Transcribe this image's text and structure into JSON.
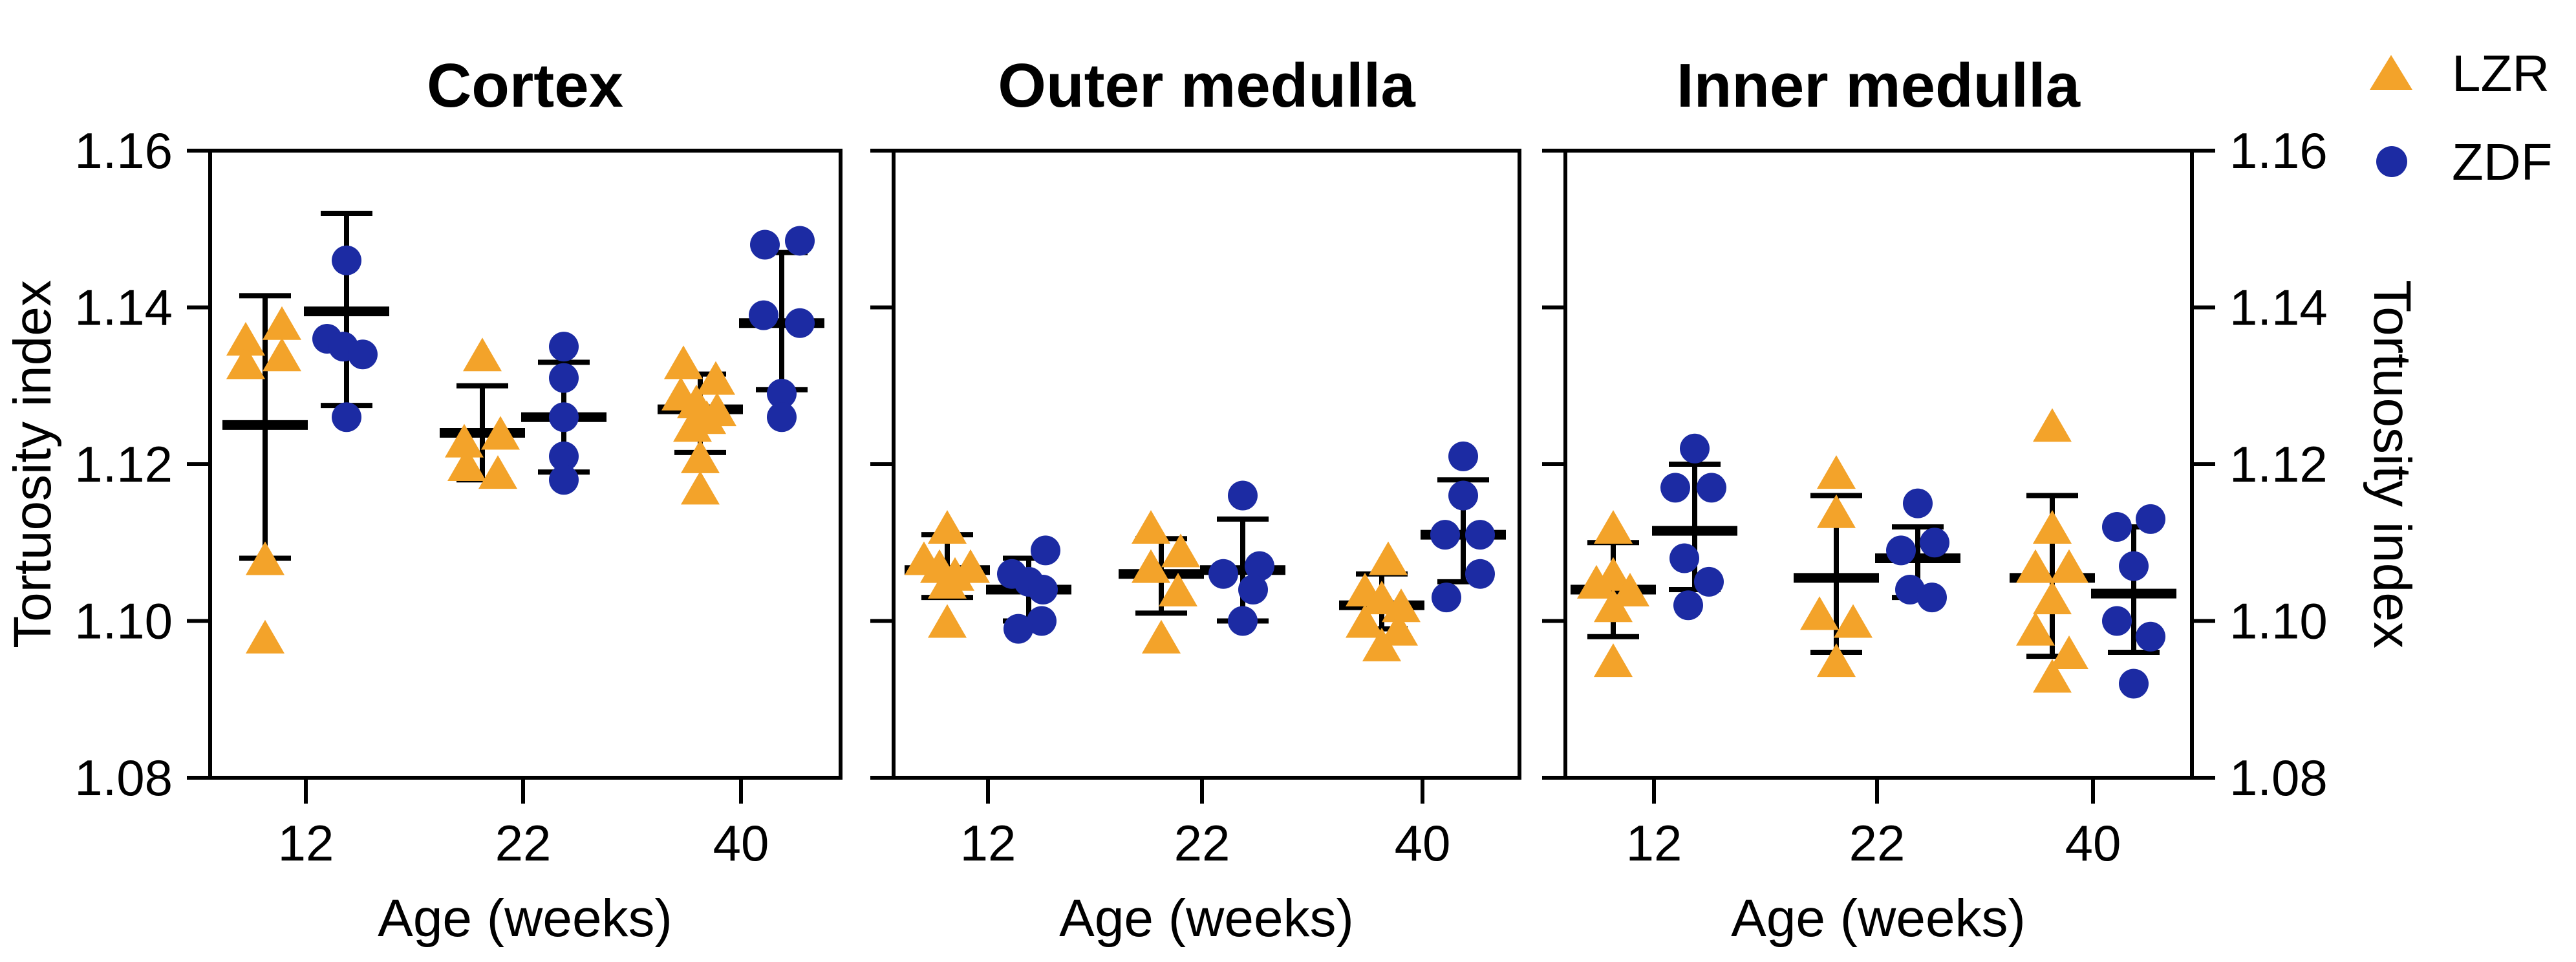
{
  "legend": {
    "items": [
      {
        "label": "LZR",
        "marker": "triangle",
        "color": "#F3A32A"
      },
      {
        "label": "ZDF",
        "marker": "circle",
        "color": "#1C2BA3"
      }
    ]
  },
  "y_axis": {
    "label": "Tortuosity index",
    "min": 1.08,
    "max": 1.16,
    "tick_labels": [
      "1.16",
      "1.14",
      "1.12",
      "1.10",
      "1.08"
    ],
    "tick_values": [
      1.16,
      1.14,
      1.12,
      1.1,
      1.08
    ]
  },
  "x_axis": {
    "label": "Age (weeks)",
    "categories": [
      "12",
      "22",
      "40"
    ]
  },
  "chart_data": {
    "type": "scatter",
    "ylim": [
      1.08,
      1.16
    ],
    "grid": false,
    "legend_position": "top-right",
    "series_colors": {
      "LZR": "#F3A32A",
      "ZDF": "#1C2BA3"
    },
    "panels": [
      {
        "title": "Cortex",
        "xlabel": "Age (weeks)",
        "categories": [
          "12",
          "22",
          "40"
        ],
        "groups": [
          {
            "age": "12",
            "series": [
              {
                "name": "LZR",
                "mean": 1.125,
                "sd_low": 1.108,
                "sd_high": 1.1415,
                "points": [
                  {
                    "v": 1.138,
                    "j": 26
                  },
                  {
                    "v": 1.136,
                    "j": -30
                  },
                  {
                    "v": 1.134,
                    "j": 26
                  },
                  {
                    "v": 1.133,
                    "j": -30
                  },
                  {
                    "v": 1.108,
                    "j": 0
                  },
                  {
                    "v": 1.098,
                    "j": 0
                  }
                ]
              },
              {
                "name": "ZDF",
                "mean": 1.1395,
                "sd_low": 1.1275,
                "sd_high": 1.152,
                "points": [
                  {
                    "v": 1.146,
                    "j": 0
                  },
                  {
                    "v": 1.136,
                    "j": -30
                  },
                  {
                    "v": 1.135,
                    "j": -5
                  },
                  {
                    "v": 1.134,
                    "j": 25
                  },
                  {
                    "v": 1.126,
                    "j": 0
                  }
                ]
              }
            ]
          },
          {
            "age": "22",
            "series": [
              {
                "name": "LZR",
                "mean": 1.124,
                "sd_low": 1.118,
                "sd_high": 1.13,
                "points": [
                  {
                    "v": 1.134,
                    "j": 0
                  },
                  {
                    "v": 1.124,
                    "j": 28
                  },
                  {
                    "v": 1.123,
                    "j": -28
                  },
                  {
                    "v": 1.12,
                    "j": -24
                  },
                  {
                    "v": 1.119,
                    "j": 24
                  }
                ]
              },
              {
                "name": "ZDF",
                "mean": 1.126,
                "sd_low": 1.119,
                "sd_high": 1.133,
                "points": [
                  {
                    "v": 1.135,
                    "j": 0
                  },
                  {
                    "v": 1.131,
                    "j": 0
                  },
                  {
                    "v": 1.126,
                    "j": 0
                  },
                  {
                    "v": 1.121,
                    "j": 0
                  },
                  {
                    "v": 1.118,
                    "j": 0
                  }
                ]
              }
            ]
          },
          {
            "age": "40",
            "series": [
              {
                "name": "LZR",
                "mean": 1.127,
                "sd_low": 1.1215,
                "sd_high": 1.1315,
                "points": [
                  {
                    "v": 1.133,
                    "j": -26
                  },
                  {
                    "v": 1.131,
                    "j": 24
                  },
                  {
                    "v": 1.129,
                    "j": -30
                  },
                  {
                    "v": 1.128,
                    "j": -6
                  },
                  {
                    "v": 1.127,
                    "j": 26
                  },
                  {
                    "v": 1.126,
                    "j": 10
                  },
                  {
                    "v": 1.125,
                    "j": -12
                  },
                  {
                    "v": 1.121,
                    "j": 0
                  },
                  {
                    "v": 1.117,
                    "j": 0
                  }
                ]
              },
              {
                "name": "ZDF",
                "mean": 1.138,
                "sd_low": 1.1295,
                "sd_high": 1.147,
                "points": [
                  {
                    "v": 1.148,
                    "j": -26
                  },
                  {
                    "v": 1.1485,
                    "j": 28
                  },
                  {
                    "v": 1.139,
                    "j": -28
                  },
                  {
                    "v": 1.138,
                    "j": 28
                  },
                  {
                    "v": 1.129,
                    "j": 0
                  },
                  {
                    "v": 1.126,
                    "j": 0
                  }
                ]
              }
            ]
          }
        ]
      },
      {
        "title": "Outer medulla",
        "xlabel": "Age (weeks)",
        "categories": [
          "12",
          "22",
          "40"
        ],
        "groups": [
          {
            "age": "12",
            "series": [
              {
                "name": "LZR",
                "mean": 1.1065,
                "sd_low": 1.103,
                "sd_high": 1.111,
                "points": [
                  {
                    "v": 1.112,
                    "j": 0
                  },
                  {
                    "v": 1.108,
                    "j": -36
                  },
                  {
                    "v": 1.107,
                    "j": -12
                  },
                  {
                    "v": 1.107,
                    "j": 36
                  },
                  {
                    "v": 1.106,
                    "j": 12
                  },
                  {
                    "v": 1.105,
                    "j": 0
                  },
                  {
                    "v": 1.1,
                    "j": 0
                  }
                ]
              },
              {
                "name": "ZDF",
                "mean": 1.104,
                "sd_low": 1.1,
                "sd_high": 1.108,
                "points": [
                  {
                    "v": 1.109,
                    "j": 26
                  },
                  {
                    "v": 1.106,
                    "j": -26
                  },
                  {
                    "v": 1.105,
                    "j": 0
                  },
                  {
                    "v": 1.104,
                    "j": 22
                  },
                  {
                    "v": 1.1,
                    "j": 20
                  },
                  {
                    "v": 1.099,
                    "j": -16
                  }
                ]
              }
            ]
          },
          {
            "age": "22",
            "series": [
              {
                "name": "LZR",
                "mean": 1.106,
                "sd_low": 1.101,
                "sd_high": 1.1105,
                "points": [
                  {
                    "v": 1.112,
                    "j": -16
                  },
                  {
                    "v": 1.109,
                    "j": 30
                  },
                  {
                    "v": 1.107,
                    "j": -16
                  },
                  {
                    "v": 1.104,
                    "j": 26
                  },
                  {
                    "v": 1.098,
                    "j": 0
                  }
                ]
              },
              {
                "name": "ZDF",
                "mean": 1.1065,
                "sd_low": 1.1,
                "sd_high": 1.113,
                "points": [
                  {
                    "v": 1.116,
                    "j": 0
                  },
                  {
                    "v": 1.107,
                    "j": 26
                  },
                  {
                    "v": 1.106,
                    "j": -30
                  },
                  {
                    "v": 1.104,
                    "j": 16
                  },
                  {
                    "v": 1.1,
                    "j": 0
                  }
                ]
              }
            ]
          },
          {
            "age": "40",
            "series": [
              {
                "name": "LZR",
                "mean": 1.102,
                "sd_low": 1.099,
                "sd_high": 1.106,
                "points": [
                  {
                    "v": 1.108,
                    "j": 10
                  },
                  {
                    "v": 1.104,
                    "j": -26
                  },
                  {
                    "v": 1.103,
                    "j": 0
                  },
                  {
                    "v": 1.102,
                    "j": 30
                  },
                  {
                    "v": 1.1,
                    "j": -26
                  },
                  {
                    "v": 1.099,
                    "j": 26
                  },
                  {
                    "v": 1.097,
                    "j": 0
                  }
                ]
              },
              {
                "name": "ZDF",
                "mean": 1.111,
                "sd_low": 1.105,
                "sd_high": 1.118,
                "points": [
                  {
                    "v": 1.121,
                    "j": 0
                  },
                  {
                    "v": 1.116,
                    "j": 0
                  },
                  {
                    "v": 1.111,
                    "j": -28
                  },
                  {
                    "v": 1.111,
                    "j": 26
                  },
                  {
                    "v": 1.106,
                    "j": 26
                  },
                  {
                    "v": 1.103,
                    "j": -26
                  }
                ]
              }
            ]
          }
        ]
      },
      {
        "title": "Inner medulla",
        "xlabel": "Age (weeks)",
        "categories": [
          "12",
          "22",
          "40"
        ],
        "groups": [
          {
            "age": "12",
            "series": [
              {
                "name": "LZR",
                "mean": 1.104,
                "sd_low": 1.098,
                "sd_high": 1.11,
                "points": [
                  {
                    "v": 1.112,
                    "j": 0
                  },
                  {
                    "v": 1.106,
                    "j": 0
                  },
                  {
                    "v": 1.105,
                    "j": -26
                  },
                  {
                    "v": 1.104,
                    "j": 26
                  },
                  {
                    "v": 1.102,
                    "j": 0
                  },
                  {
                    "v": 1.095,
                    "j": 0
                  }
                ]
              },
              {
                "name": "ZDF",
                "mean": 1.1115,
                "sd_low": 1.104,
                "sd_high": 1.12,
                "points": [
                  {
                    "v": 1.122,
                    "j": 0
                  },
                  {
                    "v": 1.117,
                    "j": -30
                  },
                  {
                    "v": 1.117,
                    "j": 26
                  },
                  {
                    "v": 1.108,
                    "j": -16
                  },
                  {
                    "v": 1.105,
                    "j": 22
                  },
                  {
                    "v": 1.102,
                    "j": -10
                  }
                ]
              }
            ]
          },
          {
            "age": "22",
            "series": [
              {
                "name": "LZR",
                "mean": 1.1055,
                "sd_low": 1.096,
                "sd_high": 1.116,
                "points": [
                  {
                    "v": 1.119,
                    "j": 0
                  },
                  {
                    "v": 1.114,
                    "j": 0
                  },
                  {
                    "v": 1.101,
                    "j": -26
                  },
                  {
                    "v": 1.1,
                    "j": 26
                  },
                  {
                    "v": 1.095,
                    "j": 0
                  }
                ]
              },
              {
                "name": "ZDF",
                "mean": 1.108,
                "sd_low": 1.103,
                "sd_high": 1.112,
                "points": [
                  {
                    "v": 1.115,
                    "j": 0
                  },
                  {
                    "v": 1.11,
                    "j": 26
                  },
                  {
                    "v": 1.109,
                    "j": -26
                  },
                  {
                    "v": 1.104,
                    "j": -12
                  },
                  {
                    "v": 1.103,
                    "j": 22
                  }
                ]
              }
            ]
          },
          {
            "age": "40",
            "series": [
              {
                "name": "LZR",
                "mean": 1.1055,
                "sd_low": 1.0955,
                "sd_high": 1.116,
                "points": [
                  {
                    "v": 1.125,
                    "j": 0
                  },
                  {
                    "v": 1.112,
                    "j": 0
                  },
                  {
                    "v": 1.107,
                    "j": -26
                  },
                  {
                    "v": 1.107,
                    "j": 26
                  },
                  {
                    "v": 1.103,
                    "j": 0
                  },
                  {
                    "v": 1.099,
                    "j": -26
                  },
                  {
                    "v": 1.096,
                    "j": 26
                  },
                  {
                    "v": 1.093,
                    "j": 0
                  }
                ]
              },
              {
                "name": "ZDF",
                "mean": 1.1035,
                "sd_low": 1.096,
                "sd_high": 1.112,
                "points": [
                  {
                    "v": 1.113,
                    "j": 26
                  },
                  {
                    "v": 1.112,
                    "j": -26
                  },
                  {
                    "v": 1.107,
                    "j": 0
                  },
                  {
                    "v": 1.1,
                    "j": -26
                  },
                  {
                    "v": 1.098,
                    "j": 26
                  },
                  {
                    "v": 1.092,
                    "j": 0
                  }
                ]
              }
            ]
          }
        ]
      }
    ]
  }
}
